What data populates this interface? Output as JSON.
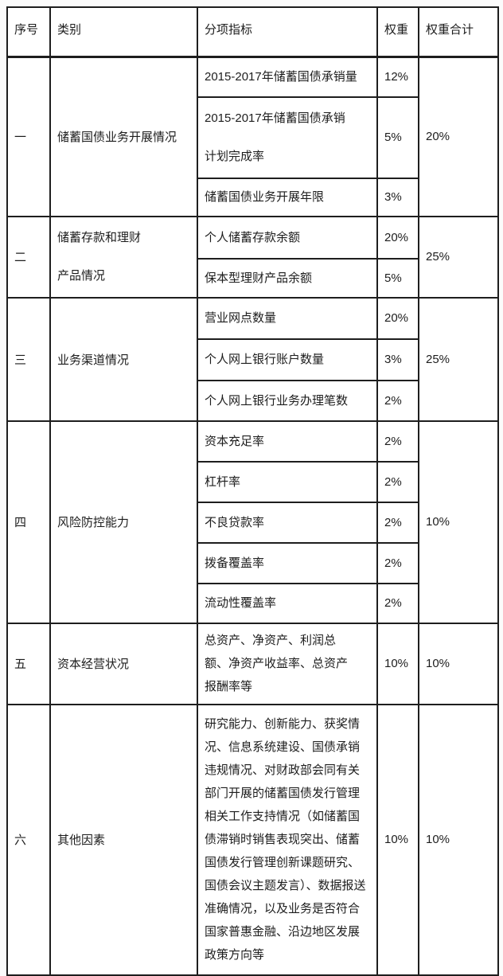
{
  "colors": {
    "page_background": "#fbfbfb",
    "table_background": "#ffffff",
    "border": "#1e1e1e",
    "text": "#1d1d1d"
  },
  "table": {
    "headers": [
      "序号",
      "类别",
      "分项指标",
      "权重",
      "权重合计"
    ],
    "sections": [
      {
        "no": "一",
        "category": "储蓄国债业务开展情况",
        "total": "20%",
        "rows": [
          {
            "indicator": "2015-2017年储蓄国债承销量",
            "weight": "12%"
          },
          {
            "indicator": "2015-2017年储蓄国债承销计划完成率",
            "weight": "5%"
          },
          {
            "indicator": "储蓄国债业务开展年限",
            "weight": "3%"
          }
        ]
      },
      {
        "no": "二",
        "category": "储蓄存款和理财产品情况",
        "total": "25%",
        "rows": [
          {
            "indicator": "个人储蓄存款余额",
            "weight": "20%"
          },
          {
            "indicator": "保本型理财产品余额",
            "weight": "5%"
          }
        ]
      },
      {
        "no": "三",
        "category": "业务渠道情况",
        "total": "25%",
        "rows": [
          {
            "indicator": "营业网点数量",
            "weight": "20%"
          },
          {
            "indicator": "个人网上银行账户数量",
            "weight": "3%"
          },
          {
            "indicator": "个人网上银行业务办理笔数",
            "weight": "2%"
          }
        ]
      },
      {
        "no": "四",
        "category": "风险防控能力",
        "total": "10%",
        "rows": [
          {
            "indicator": "资本充足率",
            "weight": "2%"
          },
          {
            "indicator": "杠杆率",
            "weight": "2%"
          },
          {
            "indicator": "不良贷款率",
            "weight": "2%"
          },
          {
            "indicator": "拨备覆盖率",
            "weight": "2%"
          },
          {
            "indicator": "流动性覆盖率",
            "weight": "2%"
          }
        ]
      },
      {
        "no": "五",
        "category": "资本经营状况",
        "total": "10%",
        "rows": [
          {
            "indicator": "总资产、净资产、利润总额、净资产收益率、总资产报酬率等",
            "weight": "10%"
          }
        ]
      },
      {
        "no": "六",
        "category": "其他因素",
        "total": "10%",
        "rows": [
          {
            "indicator": "研究能力、创新能力、获奖情况、信息系统建设、国债承销违规情况、对财政部会同有关部门开展的储蓄国债发行管理相关工作支持情况（如储蓄国债滞销时销售表现突出、储蓄国债发行管理创新课题研究、国债会议主题发言）、数据报送准确情况，以及业务是否符合国家普惠金融、沿边地区发展政策方向等",
            "weight": "10%"
          }
        ]
      }
    ]
  }
}
